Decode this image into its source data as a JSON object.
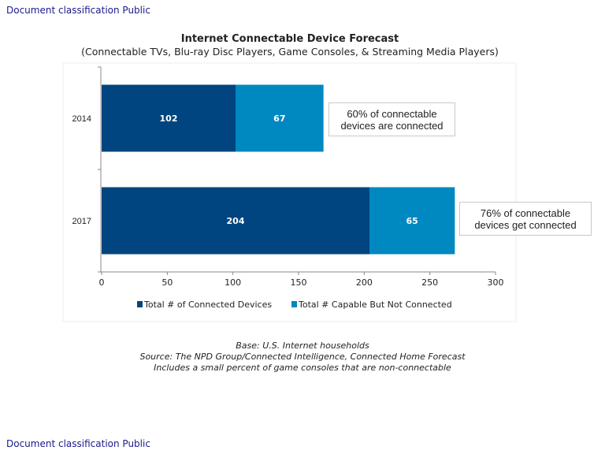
{
  "classification_top": "Document classification Public",
  "classification_bottom": "Document classification Public",
  "chart_data": {
    "type": "bar",
    "orientation": "horizontal",
    "stacked": true,
    "title": "Internet Connectable Device Forecast",
    "subtitle": "(Connectable TVs, Blu-ray Disc Players, Game Consoles, & Streaming Media Players)",
    "categories": [
      "2014",
      "2017"
    ],
    "series": [
      {
        "name": "Total # of Connected Devices",
        "values": [
          102,
          204
        ],
        "color": "#00457f"
      },
      {
        "name": "Total # Capable But Not Connected",
        "values": [
          67,
          65
        ],
        "color": "#0088c0"
      }
    ],
    "xlim": [
      0,
      300
    ],
    "xticks": [
      0,
      50,
      100,
      150,
      200,
      250,
      300
    ],
    "legend_position": "bottom",
    "annotations": [
      {
        "category": "2014",
        "text": [
          "60% of connectable",
          "devices are connected"
        ]
      },
      {
        "category": "2017",
        "text": [
          "76% of connectable",
          "devices get connected"
        ]
      }
    ]
  },
  "footnotes": [
    "Base: U.S. Internet households",
    "Source: The NPD Group/Connected Intelligence, Connected Home Forecast",
    "Includes a small percent of game consoles that are non-connectable"
  ]
}
